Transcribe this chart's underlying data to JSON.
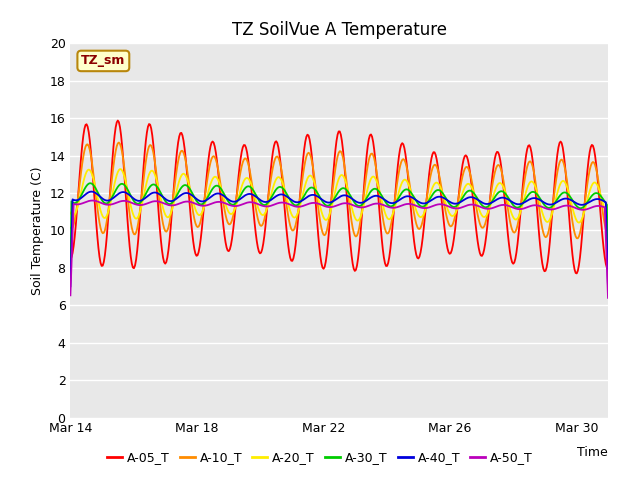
{
  "title": "TZ SoilVue A Temperature",
  "ylabel": "Soil Temperature (C)",
  "xlabel": "Time",
  "annotation_text": "TZ_sm",
  "ylim": [
    0,
    20
  ],
  "yticks": [
    0,
    2,
    4,
    6,
    8,
    10,
    12,
    14,
    16,
    18,
    20
  ],
  "date_labels": [
    "Mar 14",
    "Mar 18",
    "Mar 22",
    "Mar 26",
    "Mar 30"
  ],
  "legend_labels": [
    "A-05_T",
    "A-10_T",
    "A-20_T",
    "A-30_T",
    "A-40_T",
    "A-50_T"
  ],
  "line_colors": [
    "#ff0000",
    "#ff8c00",
    "#ffee00",
    "#00cc00",
    "#0000dd",
    "#bb00bb"
  ],
  "plot_bg_color": "#e8e8e8",
  "fig_bg_color": "#ffffff",
  "grid_color": "#ffffff",
  "title_fontsize": 12,
  "axis_fontsize": 9,
  "tick_fontsize": 9,
  "legend_fontsize": 9,
  "n_points": 500
}
